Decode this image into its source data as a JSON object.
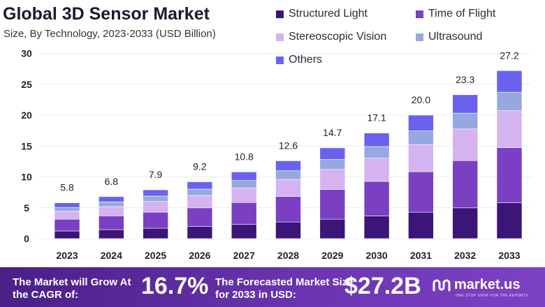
{
  "header": {
    "title": "Global 3D Sensor Market",
    "subtitle": "Size, By Technology, 2023-2033 (USD Billion)"
  },
  "chart_data": {
    "type": "bar",
    "stacked": true,
    "title": "Global 3D Sensor Market",
    "subtitle": "Size, By Technology, 2023-2033 (USD Billion)",
    "xlabel": "",
    "ylabel": "",
    "ylim": [
      0,
      30
    ],
    "yticks": [
      "0",
      "5",
      "10",
      "15",
      "20",
      "25",
      "30"
    ],
    "categories": [
      "2023",
      "2024",
      "2025",
      "2026",
      "2027",
      "2028",
      "2029",
      "2030",
      "2031",
      "2032",
      "2033"
    ],
    "totals": [
      "5.8",
      "6.8",
      "7.9",
      "9.2",
      "10.8",
      "12.6",
      "14.7",
      "17.1",
      "20.0",
      "23.3",
      "27.2"
    ],
    "series": [
      {
        "name": "Structured Light",
        "color": "#3b1577",
        "values": [
          1.24,
          1.46,
          1.69,
          1.97,
          2.31,
          2.7,
          3.15,
          3.66,
          4.28,
          4.99,
          5.82
        ]
      },
      {
        "name": "Time of Flight",
        "color": "#7a3fc2",
        "values": [
          1.9,
          2.23,
          2.59,
          3.02,
          3.54,
          4.13,
          4.82,
          5.61,
          6.56,
          7.64,
          8.92
        ]
      },
      {
        "name": "Stereoscopic Vision",
        "color": "#d4b3f0",
        "values": [
          1.28,
          1.5,
          1.74,
          2.02,
          2.38,
          2.77,
          3.23,
          3.76,
          4.4,
          5.13,
          5.98
        ]
      },
      {
        "name": "Ultrasound",
        "color": "#95a8e0",
        "values": [
          0.64,
          0.75,
          0.87,
          1.01,
          1.19,
          1.39,
          1.62,
          1.88,
          2.2,
          2.56,
          2.99
        ]
      },
      {
        "name": "Others",
        "color": "#6a62ee",
        "values": [
          0.74,
          0.86,
          1.01,
          1.18,
          1.38,
          1.61,
          1.88,
          2.19,
          2.56,
          2.98,
          3.49
        ]
      }
    ],
    "legend_position": "top-right"
  },
  "footer": {
    "cagr_label": "The Market will Grow At the CAGR of:",
    "cagr_value": "16.7%",
    "forecast_label": "The Forecasted Market Size for 2033 in USD:",
    "forecast_value": "$27.2B",
    "brand_name": "market.us",
    "brand_tagline": "ONE STOP SHOP FOR THE REPORTS"
  }
}
